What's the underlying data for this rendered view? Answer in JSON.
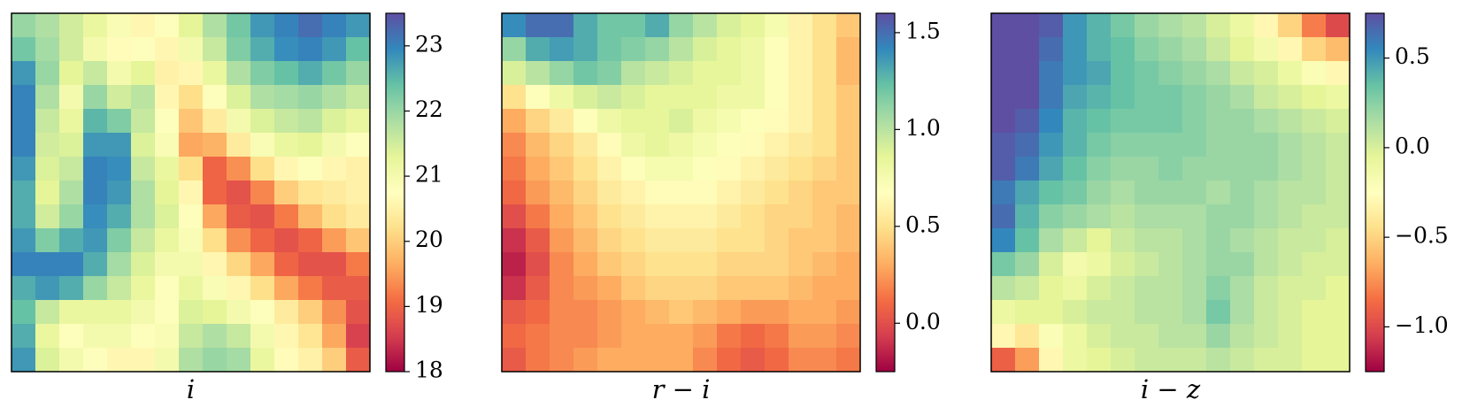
{
  "chart_data": [
    {
      "type": "heatmap",
      "xlabel": "i",
      "colormap": "Spectral",
      "clim": [
        18,
        23.5
      ],
      "cticks": [
        18,
        19,
        20,
        21,
        22,
        23
      ],
      "values": [
        [
          22.0,
          21.8,
          21.5,
          21.2,
          20.9,
          20.6,
          20.8,
          21.3,
          21.8,
          22.3,
          22.8,
          23.0,
          23.2,
          23.0,
          22.8
        ],
        [
          22.3,
          21.9,
          21.5,
          21.0,
          20.7,
          20.8,
          20.6,
          21.0,
          21.6,
          22.2,
          22.6,
          22.9,
          23.0,
          22.8,
          22.4
        ],
        [
          22.8,
          22.0,
          21.3,
          21.6,
          21.0,
          21.3,
          20.5,
          20.6,
          21.2,
          21.8,
          22.2,
          22.4,
          22.6,
          22.3,
          22.0
        ],
        [
          23.0,
          21.8,
          21.0,
          22.0,
          21.5,
          21.7,
          20.6,
          20.2,
          20.8,
          21.4,
          21.8,
          21.9,
          22.0,
          21.8,
          21.6
        ],
        [
          23.0,
          21.6,
          21.2,
          22.5,
          22.2,
          21.6,
          20.8,
          19.9,
          20.4,
          21.0,
          21.4,
          21.6,
          21.7,
          21.4,
          21.2
        ],
        [
          23.0,
          21.5,
          21.4,
          22.8,
          22.8,
          21.4,
          20.9,
          19.6,
          19.7,
          20.4,
          20.9,
          21.2,
          21.3,
          21.0,
          20.8
        ],
        [
          22.8,
          21.4,
          21.6,
          23.0,
          22.9,
          21.6,
          21.2,
          20.2,
          19.0,
          19.4,
          20.2,
          20.6,
          20.8,
          20.6,
          20.5
        ],
        [
          22.6,
          21.3,
          21.8,
          23.0,
          22.8,
          21.8,
          21.3,
          20.6,
          19.0,
          18.8,
          19.3,
          20.0,
          20.3,
          20.4,
          20.5
        ],
        [
          22.6,
          21.5,
          22.0,
          22.9,
          22.6,
          21.8,
          21.4,
          20.8,
          19.6,
          18.9,
          18.8,
          19.2,
          19.8,
          20.2,
          20.4
        ],
        [
          22.8,
          22.2,
          22.6,
          22.8,
          22.2,
          21.6,
          21.2,
          20.9,
          20.2,
          19.4,
          19.0,
          18.8,
          19.0,
          19.5,
          19.9
        ],
        [
          23.0,
          23.0,
          23.0,
          22.6,
          21.9,
          21.4,
          21.0,
          21.0,
          20.6,
          20.1,
          19.6,
          19.0,
          18.8,
          18.8,
          19.2
        ],
        [
          22.6,
          22.8,
          22.6,
          22.0,
          21.6,
          21.2,
          20.8,
          21.2,
          20.9,
          20.6,
          20.2,
          19.6,
          19.2,
          18.9,
          18.9
        ],
        [
          22.4,
          21.6,
          21.2,
          21.2,
          21.2,
          21.0,
          20.8,
          21.4,
          21.3,
          21.0,
          20.8,
          20.4,
          20.0,
          19.4,
          18.8
        ],
        [
          22.6,
          21.2,
          20.8,
          21.0,
          21.0,
          20.8,
          20.9,
          21.6,
          21.8,
          21.6,
          21.0,
          20.6,
          20.3,
          19.6,
          18.6
        ],
        [
          22.8,
          21.4,
          21.0,
          20.8,
          20.6,
          20.6,
          21.0,
          21.8,
          22.0,
          21.9,
          21.2,
          20.7,
          20.5,
          20.0,
          18.9
        ]
      ]
    },
    {
      "type": "heatmap",
      "xlabel": "r − i",
      "colormap": "Spectral",
      "clim": [
        -0.25,
        1.6
      ],
      "cticks": [
        {
          "value": 0,
          "label": "0.0"
        },
        0.5,
        {
          "value": 1,
          "label": "1.0"
        },
        1.5
      ],
      "values": [
        [
          1.4,
          1.5,
          1.5,
          1.3,
          1.2,
          1.2,
          1.3,
          1.1,
          1.0,
          0.9,
          0.85,
          0.75,
          0.6,
          0.5,
          0.4
        ],
        [
          1.1,
          1.3,
          1.35,
          1.3,
          1.2,
          1.15,
          1.1,
          1.0,
          0.9,
          0.85,
          0.8,
          0.7,
          0.6,
          0.5,
          0.35
        ],
        [
          0.9,
          1.0,
          1.1,
          1.2,
          1.15,
          1.0,
          0.95,
          0.9,
          0.85,
          0.85,
          0.8,
          0.7,
          0.6,
          0.5,
          0.35
        ],
        [
          0.5,
          0.7,
          0.8,
          0.9,
          0.95,
          0.9,
          0.85,
          0.85,
          0.85,
          0.8,
          0.8,
          0.7,
          0.6,
          0.5,
          0.4
        ],
        [
          0.3,
          0.45,
          0.55,
          0.7,
          0.8,
          0.85,
          0.85,
          0.9,
          0.8,
          0.75,
          0.7,
          0.65,
          0.6,
          0.5,
          0.4
        ],
        [
          0.2,
          0.35,
          0.45,
          0.55,
          0.65,
          0.8,
          0.85,
          0.8,
          0.75,
          0.7,
          0.65,
          0.6,
          0.55,
          0.5,
          0.4
        ],
        [
          0.15,
          0.3,
          0.4,
          0.5,
          0.6,
          0.7,
          0.75,
          0.75,
          0.7,
          0.65,
          0.6,
          0.55,
          0.5,
          0.45,
          0.4
        ],
        [
          0.1,
          0.25,
          0.35,
          0.45,
          0.55,
          0.6,
          0.65,
          0.65,
          0.65,
          0.6,
          0.55,
          0.5,
          0.45,
          0.4,
          0.4
        ],
        [
          0.0,
          0.15,
          0.3,
          0.4,
          0.5,
          0.55,
          0.6,
          0.6,
          0.6,
          0.55,
          0.5,
          0.45,
          0.45,
          0.4,
          0.35
        ],
        [
          -0.1,
          0.05,
          0.25,
          0.35,
          0.45,
          0.5,
          0.55,
          0.55,
          0.55,
          0.5,
          0.5,
          0.45,
          0.4,
          0.4,
          0.35
        ],
        [
          -0.15,
          0.0,
          0.2,
          0.3,
          0.4,
          0.45,
          0.5,
          0.5,
          0.5,
          0.45,
          0.45,
          0.45,
          0.4,
          0.35,
          0.3
        ],
        [
          -0.1,
          0.05,
          0.2,
          0.25,
          0.3,
          0.4,
          0.45,
          0.45,
          0.45,
          0.4,
          0.4,
          0.4,
          0.35,
          0.3,
          0.3
        ],
        [
          0.05,
          0.1,
          0.2,
          0.2,
          0.25,
          0.3,
          0.35,
          0.4,
          0.35,
          0.3,
          0.25,
          0.25,
          0.3,
          0.3,
          0.25
        ],
        [
          0.1,
          0.15,
          0.2,
          0.2,
          0.25,
          0.3,
          0.3,
          0.3,
          0.25,
          0.15,
          0.1,
          0.15,
          0.25,
          0.25,
          0.2
        ],
        [
          0.05,
          0.15,
          0.2,
          0.25,
          0.3,
          0.3,
          0.3,
          0.3,
          0.2,
          0.1,
          0.05,
          0.1,
          0.2,
          0.2,
          0.15
        ]
      ]
    },
    {
      "type": "heatmap",
      "xlabel": "i − z",
      "colormap": "Spectral",
      "clim": [
        -1.25,
        0.75
      ],
      "cticks": [
        {
          "value": -1,
          "label": "−1.0"
        },
        {
          "value": -0.5,
          "label": "−0.5"
        },
        {
          "value": 0,
          "label": "0.0"
        },
        0.5
      ],
      "values": [
        [
          0.75,
          0.75,
          0.7,
          0.5,
          0.4,
          0.3,
          0.2,
          0.15,
          0.1,
          0.0,
          -0.1,
          -0.3,
          -0.5,
          -0.8,
          -1.0
        ],
        [
          0.75,
          0.75,
          0.65,
          0.5,
          0.4,
          0.35,
          0.25,
          0.2,
          0.15,
          0.05,
          -0.05,
          -0.15,
          -0.3,
          -0.5,
          -0.6
        ],
        [
          0.75,
          0.75,
          0.6,
          0.5,
          0.45,
          0.35,
          0.3,
          0.25,
          0.2,
          0.15,
          0.05,
          0.0,
          -0.1,
          -0.2,
          -0.3
        ],
        [
          0.75,
          0.75,
          0.6,
          0.45,
          0.4,
          0.35,
          0.3,
          0.3,
          0.25,
          0.2,
          0.15,
          0.05,
          0.0,
          -0.05,
          -0.1
        ],
        [
          0.75,
          0.7,
          0.55,
          0.4,
          0.35,
          0.3,
          0.3,
          0.3,
          0.25,
          0.2,
          0.2,
          0.15,
          0.1,
          0.05,
          0.0
        ],
        [
          0.7,
          0.65,
          0.5,
          0.4,
          0.3,
          0.25,
          0.25,
          0.25,
          0.25,
          0.2,
          0.2,
          0.2,
          0.15,
          0.1,
          0.05
        ],
        [
          0.7,
          0.6,
          0.45,
          0.35,
          0.25,
          0.2,
          0.2,
          0.25,
          0.2,
          0.2,
          0.2,
          0.2,
          0.15,
          0.1,
          0.05
        ],
        [
          0.6,
          0.45,
          0.35,
          0.3,
          0.2,
          0.15,
          0.2,
          0.2,
          0.2,
          0.15,
          0.2,
          0.15,
          0.1,
          0.1,
          0.05
        ],
        [
          0.65,
          0.4,
          0.25,
          0.2,
          0.15,
          0.1,
          0.15,
          0.15,
          0.15,
          0.2,
          0.2,
          0.15,
          0.1,
          0.05,
          0.05
        ],
        [
          0.55,
          0.35,
          0.15,
          0.05,
          -0.05,
          0.05,
          0.1,
          0.1,
          0.15,
          0.2,
          0.15,
          0.1,
          0.05,
          0.05,
          0.0
        ],
        [
          0.3,
          0.2,
          0.0,
          -0.15,
          -0.1,
          0.0,
          0.05,
          0.1,
          0.15,
          0.2,
          0.2,
          0.1,
          0.05,
          0.0,
          0.0
        ],
        [
          0.1,
          0.05,
          -0.05,
          -0.1,
          0.0,
          0.05,
          0.1,
          0.1,
          0.15,
          0.25,
          0.15,
          0.05,
          0.0,
          0.0,
          -0.05
        ],
        [
          -0.1,
          -0.05,
          -0.05,
          0.0,
          0.05,
          0.05,
          0.1,
          0.1,
          0.15,
          0.3,
          0.15,
          0.05,
          0.0,
          -0.05,
          -0.05
        ],
        [
          -0.3,
          -0.4,
          -0.2,
          -0.1,
          0.0,
          0.05,
          0.05,
          0.1,
          0.1,
          0.2,
          0.1,
          0.05,
          0.0,
          -0.05,
          -0.05
        ],
        [
          -0.9,
          -0.7,
          -0.3,
          -0.1,
          -0.05,
          0.0,
          0.05,
          0.05,
          0.05,
          0.1,
          0.05,
          0.0,
          0.0,
          -0.05,
          -0.05
        ]
      ]
    }
  ]
}
